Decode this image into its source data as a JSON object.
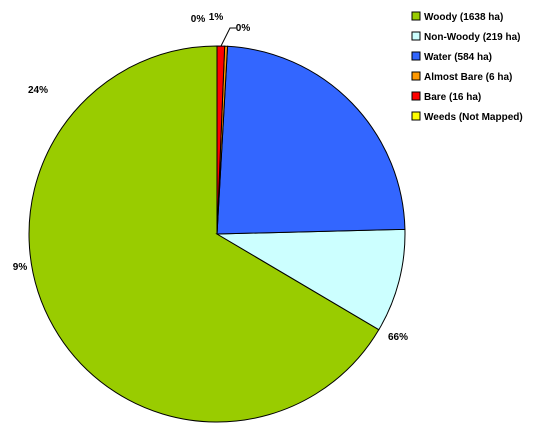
{
  "chart_data": {
    "type": "pie",
    "title": "",
    "legend_position": "top-right",
    "series": [
      {
        "name": "Woody (1638 ha)",
        "value": 1638,
        "label": "66%",
        "color": "#99cc00"
      },
      {
        "name": "Non-Woody (219 ha)",
        "value": 219,
        "label": "9%",
        "color": "#ccffff"
      },
      {
        "name": "Water (584 ha)",
        "value": 584,
        "label": "24%",
        "color": "#3366ff"
      },
      {
        "name": "Almost Bare (6 ha)",
        "value": 6,
        "label": "0%",
        "color": "#ff9900"
      },
      {
        "name": "Bare (16 ha)",
        "value": 16,
        "label": "1%",
        "color": "#ff0000"
      },
      {
        "name": "Weeds (Not Mapped)",
        "value": 0,
        "label": "0%",
        "color": "#ffff00"
      }
    ]
  }
}
